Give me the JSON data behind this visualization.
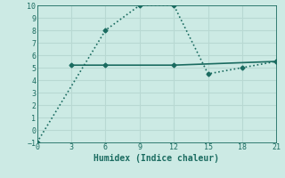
{
  "xlabel": "Humidex (Indice chaleur)",
  "ylabel": "",
  "background_color": "#cceae4",
  "line_color": "#1a6b60",
  "grid_color": "#b8d8d2",
  "xlim": [
    0,
    21
  ],
  "ylim": [
    -1,
    10
  ],
  "xticks": [
    0,
    3,
    6,
    9,
    12,
    15,
    18,
    21
  ],
  "yticks": [
    -1,
    0,
    1,
    2,
    3,
    4,
    5,
    6,
    7,
    8,
    9,
    10
  ],
  "series1_x": [
    0,
    6,
    9,
    12,
    15,
    18,
    21
  ],
  "series1_y": [
    -1,
    8,
    10,
    10,
    4.5,
    5,
    5.5
  ],
  "series2_x": [
    3,
    6,
    12,
    21
  ],
  "series2_y": [
    5.2,
    5.2,
    5.2,
    5.5
  ]
}
